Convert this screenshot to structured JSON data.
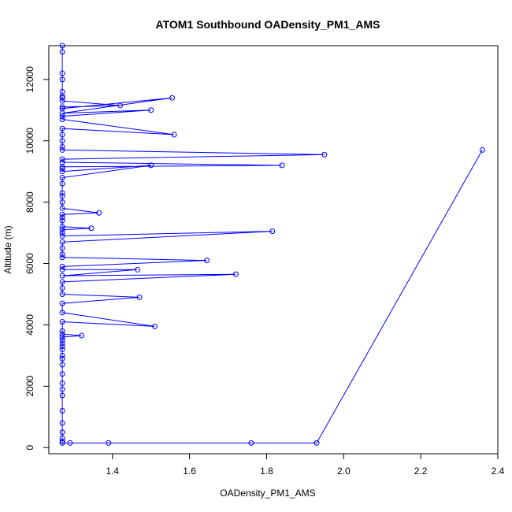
{
  "chart_data": {
    "type": "line",
    "title": "ATOM1 Southbound OADensity_PM1_AMS",
    "xlabel": "OADensity_PM1_AMS",
    "ylabel": "Altitude (m)",
    "xlim": [
      1.235,
      2.4
    ],
    "ylim": [
      -200,
      13100
    ],
    "x_ticks": [
      1.4,
      1.6,
      1.8,
      2.0,
      2.2,
      2.4
    ],
    "x_tick_labels": [
      "1.4",
      "1.6",
      "1.8",
      "2.0",
      "2.2",
      "2.4"
    ],
    "y_ticks": [
      0,
      2000,
      4000,
      6000,
      8000,
      10000,
      12000
    ],
    "y_tick_labels": [
      "0",
      "2000",
      "4000",
      "6000",
      "8000",
      "10000",
      "12000"
    ],
    "grid": false,
    "legend": "none",
    "color": "#0000ff",
    "series": [
      {
        "x": [
          1.27,
          1.27,
          1.27,
          1.27,
          1.27,
          1.27,
          1.27,
          1.27,
          1.42,
          1.27,
          1.27,
          1.555,
          1.27,
          1.5,
          1.27,
          1.27,
          1.56,
          1.27,
          1.27,
          1.27,
          1.27,
          1.27,
          1.95,
          1.27,
          1.27,
          1.84,
          1.27,
          1.27,
          1.27,
          1.5,
          1.27,
          1.27,
          1.27,
          1.27,
          1.27,
          1.27,
          1.365,
          1.27,
          1.27,
          1.27,
          1.27,
          1.345,
          1.27,
          1.27,
          1.27,
          1.815,
          1.27,
          1.27,
          1.27,
          1.27,
          1.645,
          1.27,
          1.27,
          1.465,
          1.27,
          1.72,
          1.27,
          1.27,
          1.27,
          1.47,
          1.27,
          1.27,
          1.51,
          1.27,
          1.27,
          1.27,
          1.32,
          1.27,
          1.27,
          1.27,
          1.27,
          1.27,
          1.27,
          1.27,
          1.27,
          1.27,
          1.27,
          1.27,
          1.27,
          1.27,
          1.27,
          1.27,
          1.27,
          1.27,
          1.27,
          1.29,
          1.39,
          1.76,
          1.93,
          2.36
        ],
        "y": [
          13100,
          12900,
          12200,
          12000,
          11600,
          11450,
          11400,
          11300,
          11150,
          11100,
          11050,
          11400,
          10900,
          11000,
          10800,
          10700,
          10200,
          10400,
          10200,
          10000,
          9800,
          9700,
          9550,
          9400,
          9300,
          9200,
          9150,
          9100,
          9000,
          9200,
          8800,
          8600,
          8300,
          8200,
          8000,
          7800,
          7650,
          7600,
          7500,
          7400,
          7200,
          7150,
          7100,
          7000,
          6900,
          7050,
          6700,
          6500,
          6300,
          6200,
          6100,
          5900,
          5800,
          5800,
          5600,
          5650,
          5400,
          5200,
          5000,
          4900,
          4700,
          4400,
          3950,
          4100,
          3800,
          3700,
          3650,
          3600,
          3500,
          3400,
          3300,
          3200,
          3000,
          2900,
          2700,
          2400,
          2100,
          1900,
          1700,
          1200,
          800,
          500,
          300,
          200,
          150,
          150,
          150,
          150,
          150,
          9700
        ]
      }
    ]
  }
}
